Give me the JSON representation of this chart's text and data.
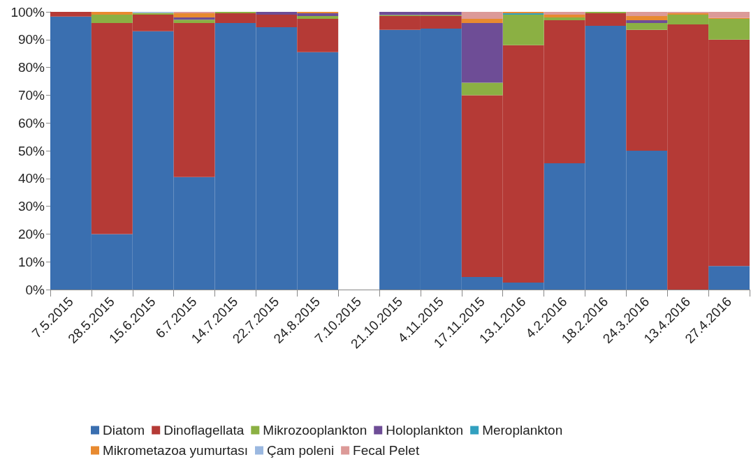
{
  "chart_data": {
    "type": "bar",
    "stacked": true,
    "categories": [
      "7.5.2015",
      "28.5.2015",
      "15.6.2015",
      "6.7.2015",
      "14.7.2015",
      "22.7.2015",
      "24.8.2015",
      "7.10.2015",
      "21.10.2015",
      "4.11.2015",
      "17.11.2015",
      "13.1.2016",
      "4.2.2016",
      "18.2.2016",
      "24.3.2016",
      "13.4.2016",
      "27.4.2016"
    ],
    "series": [
      {
        "name": "Diatom",
        "color": "#3a6fb0",
        "values": [
          98.3,
          20,
          93,
          40.5,
          96,
          94.5,
          85.5,
          null,
          93.5,
          94,
          4.5,
          2.5,
          45.5,
          95,
          50,
          0,
          8.5
        ]
      },
      {
        "name": "Dinoflagellata",
        "color": "#b53a36",
        "values": [
          1.7,
          76,
          6,
          55.5,
          3.5,
          4.5,
          12,
          null,
          5,
          4.5,
          65.5,
          85.5,
          51.5,
          4.5,
          43.5,
          95.5,
          81.5
        ]
      },
      {
        "name": "Mikrozooplankton",
        "color": "#8bb043",
        "values": [
          0,
          3,
          0.6,
          1.2,
          0.5,
          0,
          1,
          null,
          0.4,
          0.4,
          4.5,
          11,
          1,
          0.5,
          2.5,
          3.5,
          7.5
        ]
      },
      {
        "name": "Holoplankton",
        "color": "#6e4d96",
        "values": [
          0,
          0,
          0,
          0.8,
          0,
          1,
          1,
          null,
          1.1,
          1.1,
          21.5,
          0,
          0,
          0,
          1,
          0,
          0
        ]
      },
      {
        "name": "Meroplankton",
        "color": "#32a0bf",
        "values": [
          0,
          0,
          0,
          0,
          0,
          0,
          0,
          null,
          0,
          0,
          0,
          0.5,
          0,
          0,
          0,
          0,
          0
        ]
      },
      {
        "name": "Mikrometazoa yumurtası",
        "color": "#e88a30",
        "values": [
          0,
          1,
          0,
          1.5,
          0,
          0,
          0.5,
          null,
          0,
          0,
          1.5,
          0.5,
          1,
          0,
          1.5,
          0.5,
          0.3
        ]
      },
      {
        "name": "Çam poleni",
        "color": "#9bb8e0",
        "values": [
          0,
          0,
          0.4,
          0,
          0,
          0,
          0,
          null,
          0,
          0,
          0,
          0,
          0,
          0,
          0,
          0,
          0
        ]
      },
      {
        "name": "Fecal Pelet",
        "color": "#dc9a98",
        "values": [
          0,
          0,
          0,
          0.5,
          0,
          0,
          0,
          null,
          0,
          0,
          2.5,
          0,
          1,
          0,
          1.5,
          0.5,
          2.2
        ]
      }
    ],
    "ylim": [
      0,
      100
    ],
    "yticks": [
      {
        "value": 0,
        "label": "0%"
      },
      {
        "value": 10,
        "label": "10%"
      },
      {
        "value": 20,
        "label": "20%"
      },
      {
        "value": 30,
        "label": "30%"
      },
      {
        "value": 40,
        "label": "40%"
      },
      {
        "value": 50,
        "label": "50%"
      },
      {
        "value": 60,
        "label": "60%"
      },
      {
        "value": 70,
        "label": "70%"
      },
      {
        "value": 80,
        "label": "80%"
      },
      {
        "value": 90,
        "label": "90%"
      },
      {
        "value": 100,
        "label": "100%"
      }
    ],
    "grid": false,
    "legend": "bottom"
  }
}
